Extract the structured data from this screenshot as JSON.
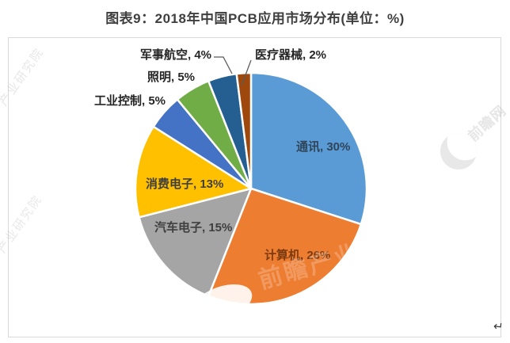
{
  "title": "图表9：2018年中国PCB应用市场分布(单位：%)",
  "chart_data": {
    "type": "pie",
    "title": "2018年中国PCB应用市场分布",
    "unit": "%",
    "start_angle_deg": 0,
    "direction": "clockwise",
    "total": 100,
    "legend": "none",
    "slices": [
      {
        "category": "通讯",
        "value": 30,
        "label": "通讯, 30%",
        "color": "#5B9BD5",
        "label_color": "#2F4459",
        "label_placement": "inside"
      },
      {
        "category": "计算机",
        "value": 26,
        "label": "计算机, 26%",
        "color": "#ED7D31",
        "label_color": "#7C3A10",
        "label_placement": "inside"
      },
      {
        "category": "汽车电子",
        "value": 15,
        "label": "汽车电子, 15%",
        "color": "#A5A5A5",
        "label_color": "#3F3F3F",
        "label_placement": "inside"
      },
      {
        "category": "消费电子",
        "value": 13,
        "label": "消费电子, 13%",
        "color": "#FFC000",
        "label_color": "#3F3F3F",
        "label_placement": "inside"
      },
      {
        "category": "工业控制",
        "value": 5,
        "label": "工业控制, 5%",
        "color": "#4472C4",
        "label_color": "#262626",
        "label_placement": "outside"
      },
      {
        "category": "照明",
        "value": 5,
        "label": "照明, 5%",
        "color": "#70AD47",
        "label_color": "#262626",
        "label_placement": "outside"
      },
      {
        "category": "军事航空",
        "value": 4,
        "label": "军事航空, 4%",
        "color": "#255E91",
        "label_color": "#262626",
        "label_placement": "outside"
      },
      {
        "category": "医疗器械",
        "value": 2,
        "label": "医疗器械, 2%",
        "color": "#9E480E",
        "label_color": "#262626",
        "label_placement": "outside"
      }
    ]
  },
  "watermarks": {
    "left_top": "产业研究院",
    "left_bottom": "产业研究院",
    "right_text": "前瞻网",
    "center_text": "前瞻产业研究院"
  },
  "return_mark": "↵"
}
